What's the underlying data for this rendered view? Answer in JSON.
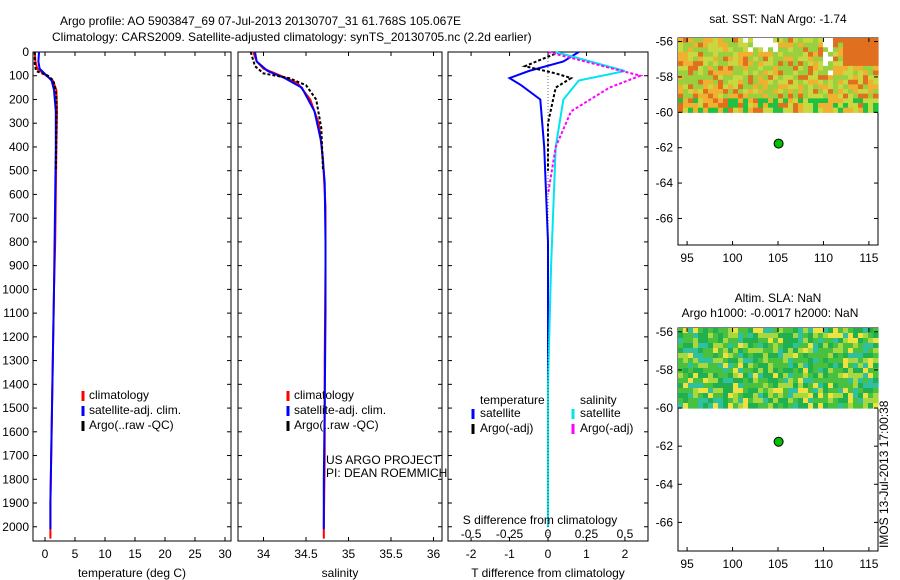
{
  "header": {
    "line1": "Argo profile: AO 5903847_69 07-Jul-2013 20130707_31 61.768S 105.067E",
    "line2": "Climatology: CARS2009. Satellite-adjusted climatology: synTS_20130705.nc (2.2d earlier)"
  },
  "colors": {
    "climatology": "#ff0000",
    "satellite": "#0000ff",
    "argo": "#000000",
    "sat_salinity": "#00e5ee",
    "argo_salinity": "#ff00ff",
    "argo_marker": "#00c000"
  },
  "chart_data": [
    {
      "type": "line",
      "id": "temperature",
      "xlabel": "temperature (deg C)",
      "ylabel": "",
      "xlim": [
        -2,
        31
      ],
      "ylim": [
        2060,
        0
      ],
      "xticks": [
        "0",
        "5",
        "10",
        "15",
        "20",
        "25",
        "30"
      ],
      "yticks": [
        "0",
        "100",
        "200",
        "300",
        "400",
        "500",
        "600",
        "700",
        "800",
        "900",
        "1000",
        "1100",
        "1200",
        "1300",
        "1400",
        "1500",
        "1600",
        "1700",
        "1800",
        "1900",
        "2000"
      ],
      "legend": [
        "climatology",
        "satellite-adj. clim.",
        "Argo(..raw -QC)"
      ],
      "series": [
        {
          "name": "climatology",
          "points": [
            [
              -1.7,
              0
            ],
            [
              -1.6,
              40
            ],
            [
              -1.3,
              70
            ],
            [
              0.2,
              100
            ],
            [
              1.3,
              120
            ],
            [
              1.9,
              160
            ],
            [
              2.0,
              250
            ],
            [
              1.9,
              400
            ],
            [
              1.8,
              600
            ],
            [
              1.7,
              800
            ],
            [
              1.5,
              1000
            ],
            [
              1.3,
              1300
            ],
            [
              1.1,
              1600
            ],
            [
              0.9,
              1900
            ],
            [
              0.9,
              2050
            ]
          ]
        },
        {
          "name": "satellite-adj. clim.",
          "points": [
            [
              -1.0,
              0
            ],
            [
              -1.1,
              40
            ],
            [
              -0.9,
              70
            ],
            [
              0.3,
              100
            ],
            [
              1.1,
              120
            ],
            [
              1.5,
              160
            ],
            [
              1.8,
              250
            ],
            [
              1.8,
              400
            ],
            [
              1.7,
              600
            ],
            [
              1.6,
              800
            ],
            [
              1.5,
              1000
            ],
            [
              1.3,
              1300
            ],
            [
              1.1,
              1600
            ],
            [
              0.9,
              1900
            ],
            [
              0.9,
              2010
            ]
          ]
        },
        {
          "name": "Argo(..raw -QC)",
          "points": [
            [
              -1.7,
              0
            ],
            [
              -1.7,
              50
            ],
            [
              -1.5,
              80
            ],
            [
              0.5,
              100
            ],
            [
              1.4,
              120
            ],
            [
              1.9,
              180
            ],
            [
              1.9,
              300
            ],
            [
              1.8,
              500
            ]
          ]
        }
      ]
    },
    {
      "type": "line",
      "id": "salinity",
      "xlabel": "salinity",
      "ylabel": "",
      "xlim": [
        33.7,
        36.1
      ],
      "ylim": [
        2060,
        0
      ],
      "xticks": [
        "34",
        "34.5",
        "35",
        "35.5",
        "36"
      ],
      "legend": [
        "climatology",
        "satellite-adj. clim.",
        "Argo(..raw -QC)"
      ],
      "annotation": [
        "US ARGO PROJECT",
        "PI: DEAN ROEMMICH"
      ],
      "series": [
        {
          "name": "climatology",
          "points": [
            [
              33.88,
              0
            ],
            [
              33.92,
              40
            ],
            [
              34.0,
              70
            ],
            [
              34.2,
              100
            ],
            [
              34.4,
              130
            ],
            [
              34.55,
              200
            ],
            [
              34.65,
              300
            ],
            [
              34.7,
              450
            ],
            [
              34.73,
              650
            ],
            [
              34.73,
              900
            ],
            [
              34.72,
              1300
            ],
            [
              34.72,
              1700
            ],
            [
              34.71,
              2000
            ],
            [
              34.71,
              2050
            ]
          ]
        },
        {
          "name": "satellite-adj. clim.",
          "points": [
            [
              33.9,
              0
            ],
            [
              33.92,
              40
            ],
            [
              34.05,
              80
            ],
            [
              34.25,
              110
            ],
            [
              34.45,
              150
            ],
            [
              34.6,
              250
            ],
            [
              34.68,
              380
            ],
            [
              34.72,
              550
            ],
            [
              34.73,
              800
            ],
            [
              34.73,
              1100
            ],
            [
              34.72,
              1500
            ],
            [
              34.71,
              1800
            ],
            [
              34.71,
              2010
            ]
          ]
        },
        {
          "name": "Argo(..raw -QC)",
          "points": [
            [
              33.85,
              0
            ],
            [
              33.9,
              60
            ],
            [
              34.0,
              90
            ],
            [
              34.3,
              110
            ],
            [
              34.5,
              140
            ],
            [
              34.62,
              200
            ],
            [
              34.68,
              320
            ],
            [
              34.7,
              500
            ]
          ]
        }
      ]
    },
    {
      "type": "line",
      "id": "difference",
      "xlabel": "T difference from climatology",
      "top_axis_label": "S difference from climatology",
      "xlim": [
        -2.6,
        2.6
      ],
      "ylim": [
        2060,
        0
      ],
      "xticks": [
        "-2",
        "-1",
        "0",
        "1",
        "2"
      ],
      "top_ticks": [
        "-0.5",
        "-0.25",
        "0",
        "0.25",
        "0.5"
      ],
      "legend_groups": [
        {
          "title": "temperature",
          "entries": [
            "satellite",
            "Argo(-adj)"
          ]
        },
        {
          "title": "salinity",
          "entries": [
            "satellite",
            "Argo(-adj)"
          ]
        }
      ],
      "series": [
        {
          "name": "satellite",
          "group": "temperature",
          "points": [
            [
              0.8,
              0
            ],
            [
              0.4,
              40
            ],
            [
              -0.5,
              80
            ],
            [
              -1.0,
              110
            ],
            [
              -0.7,
              140
            ],
            [
              -0.2,
              200
            ],
            [
              -0.1,
              400
            ],
            [
              0.0,
              800
            ],
            [
              0.0,
              1200
            ],
            [
              0.0,
              1600
            ],
            [
              0.0,
              2000
            ]
          ]
        },
        {
          "name": "Argo(-adj)",
          "group": "temperature",
          "points": [
            [
              0.3,
              0
            ],
            [
              -0.6,
              60
            ],
            [
              0.2,
              90
            ],
            [
              0.6,
              110
            ],
            [
              0.2,
              150
            ],
            [
              0.0,
              300
            ],
            [
              0.0,
              500
            ]
          ]
        },
        {
          "name": "satellite",
          "group": "salinity",
          "points": [
            [
              0.05,
              0
            ],
            [
              0.5,
              80
            ],
            [
              0.2,
              120
            ],
            [
              0.1,
              200
            ],
            [
              0.05,
              400
            ],
            [
              0.02,
              900
            ],
            [
              0.0,
              1400
            ],
            [
              0.0,
              2000
            ]
          ]
        },
        {
          "name": "Argo(-adj)",
          "group": "salinity",
          "points": [
            [
              0.0,
              0
            ],
            [
              0.6,
              100
            ],
            [
              0.4,
              150
            ],
            [
              0.15,
              250
            ],
            [
              0.05,
              400
            ],
            [
              0.0,
              600
            ]
          ]
        }
      ]
    },
    {
      "type": "heatmap",
      "id": "sst_map",
      "title": "sat. SST: NaN Argo: -1.74",
      "xlim": [
        94,
        116
      ],
      "ylim": [
        -67.5,
        -55.8
      ],
      "xticks": [
        "95",
        "100",
        "105",
        "110",
        "115"
      ],
      "yticks": [
        "-56",
        "-58",
        "-60",
        "-62",
        "-64",
        "-66"
      ],
      "data_extent": {
        "lon": [
          94,
          116
        ],
        "lat": [
          -60,
          -55.8
        ]
      },
      "marker": {
        "lon": 105.067,
        "lat": -61.768
      }
    },
    {
      "type": "heatmap",
      "id": "sla_map",
      "title": "Altim. SLA: NaN",
      "subtitle": "Argo h1000: -0.0017 h2000: NaN",
      "xlim": [
        94,
        116
      ],
      "ylim": [
        -67.5,
        -55.8
      ],
      "xticks": [
        "95",
        "100",
        "105",
        "110",
        "115"
      ],
      "yticks": [
        "-56",
        "-58",
        "-60",
        "-62",
        "-64",
        "-66"
      ],
      "data_extent": {
        "lon": [
          94,
          116
        ],
        "lat": [
          -60,
          -55.8
        ]
      },
      "marker": {
        "lon": 105.067,
        "lat": -61.768
      }
    }
  ],
  "side_label": "IMOS 13-Jul-2013 17:00:38"
}
